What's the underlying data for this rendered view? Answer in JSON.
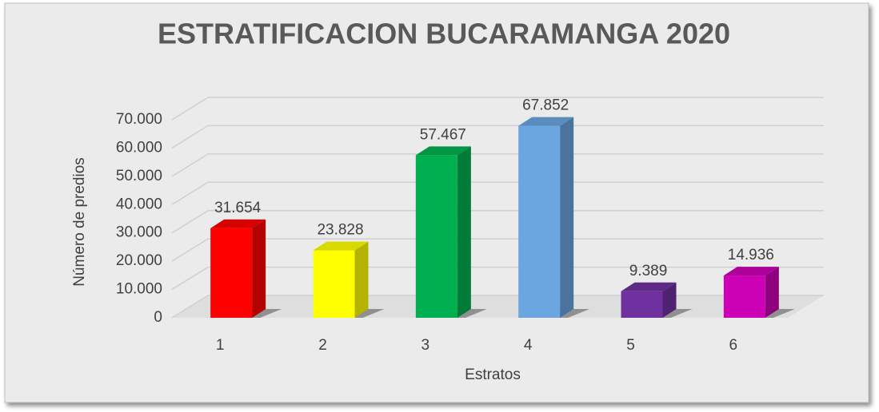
{
  "chart_data": {
    "type": "bar3d",
    "title": "ESTRATIFICACION BUCARAMANGA 2020",
    "x_label": "Estratos",
    "y_label": "Número de predios",
    "categories": [
      "1",
      "2",
      "3",
      "4",
      "5",
      "6"
    ],
    "values": [
      31654,
      23828,
      57467,
      67852,
      9389,
      14936
    ],
    "value_labels": [
      "31.654",
      "23.828",
      "57.467",
      "67.852",
      "9.389",
      "14.936"
    ],
    "colors": [
      "#ff0000",
      "#ffff00",
      "#00b050",
      "#6aa6e0",
      "#7030a0",
      "#cc00b4"
    ],
    "ylim": [
      0,
      70000
    ],
    "yticks": [
      0,
      {
        "value": 10000,
        "label": "10.000"
      },
      {
        "value": 20000,
        "label": "20.000"
      },
      {
        "value": 30000,
        "label": "30.000"
      },
      {
        "value": 40000,
        "label": "40.000"
      },
      {
        "value": 50000,
        "label": "50.000"
      },
      {
        "value": 60000,
        "label": "60.000"
      },
      {
        "value": 70000,
        "label": "70.000"
      }
    ],
    "grid": true
  }
}
